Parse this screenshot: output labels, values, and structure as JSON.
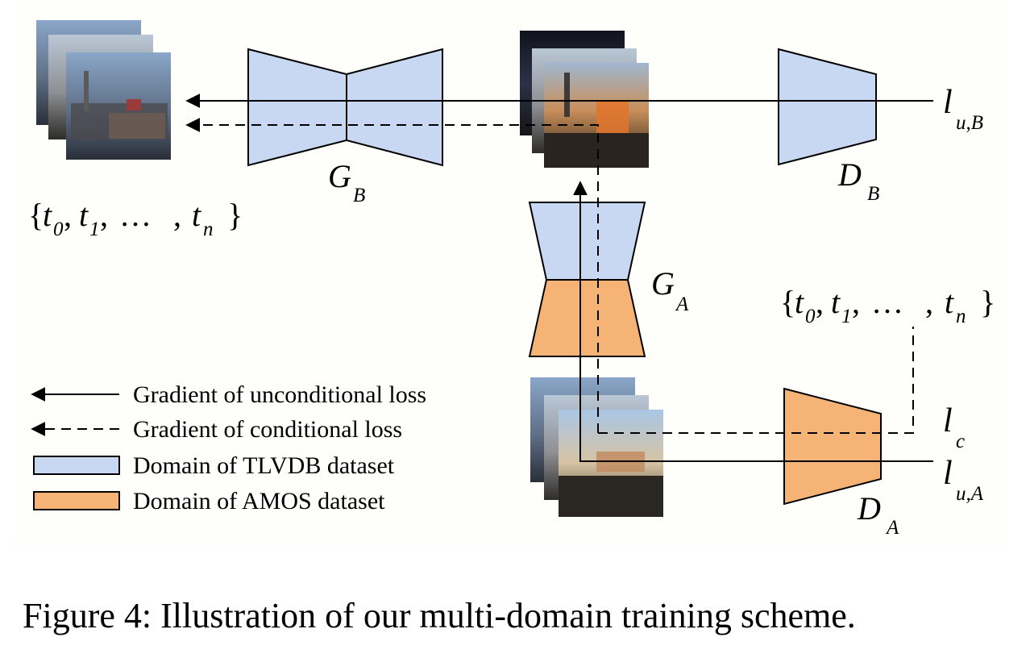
{
  "colors": {
    "tlvdb_blue": "#c9d8f2",
    "amos_orange": "#f5b375",
    "stroke": "#000000",
    "panel_bg": "#fefefa"
  },
  "networks": {
    "gb": {
      "main": "G",
      "sub": "B"
    },
    "db": {
      "main": "D",
      "sub": "B"
    },
    "ga": {
      "main": "G",
      "sub": "A"
    },
    "da": {
      "main": "D",
      "sub": "A"
    }
  },
  "sets": {
    "top_left": {
      "open": "{",
      "t": "t",
      "s0": "0",
      "s1": "1",
      "sn": "n",
      "sep": ",",
      "dots": "…",
      "close": "}"
    },
    "right": {
      "open": "{",
      "t": "t",
      "s0": "0",
      "s1": "1",
      "sn": "n",
      "sep": ",",
      "dots": "…",
      "close": "}"
    }
  },
  "losses": {
    "lub": {
      "main": "l",
      "sub": "u,B"
    },
    "lc": {
      "main": "l",
      "sub": "c"
    },
    "lua": {
      "main": "l",
      "sub": "u,A"
    }
  },
  "legend": {
    "uncond": "Gradient of unconditional loss",
    "cond": "Gradient of conditional loss",
    "tlvdb": "Domain of TLVDB dataset",
    "amos": "Domain of AMOS dataset"
  },
  "caption": "Figure 4: Illustration of our multi-domain training scheme."
}
